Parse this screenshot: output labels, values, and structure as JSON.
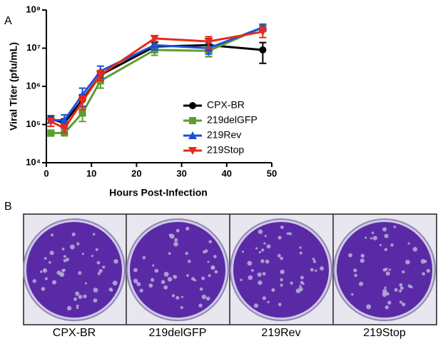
{
  "chart_data": {
    "type": "line",
    "panel_label": "A",
    "x_label": "Hours Post-Infection",
    "y_label": "Viral Titer (pfu/mL)",
    "x": [
      1,
      4,
      8,
      12,
      24,
      36,
      48
    ],
    "log_y": true,
    "xlim": [
      0,
      50
    ],
    "xticks": [
      0,
      10,
      20,
      30,
      40,
      50
    ],
    "ylim": [
      10000,
      100000000
    ],
    "yticks": [
      {
        "value": 10000,
        "label": "10⁴"
      },
      {
        "value": 100000,
        "label": "10⁵"
      },
      {
        "value": 1000000,
        "label": "10⁶"
      },
      {
        "value": 10000000,
        "label": "10⁷"
      },
      {
        "value": 100000000,
        "label": "10⁸"
      }
    ],
    "series": [
      {
        "name": "CPX-BR",
        "color": "#000000",
        "marker": "circle",
        "values": [
          140000,
          110000,
          450000,
          2000000,
          11000000,
          12000000,
          9000000
        ],
        "errors": [
          30000,
          30000,
          150000,
          500000,
          3000000,
          6000000,
          5000000
        ]
      },
      {
        "name": "219delGFP",
        "color": "#5a9e2f",
        "marker": "square",
        "values": [
          60000,
          60000,
          200000,
          1400000,
          9000000,
          8500000,
          35000000
        ],
        "errors": [
          10000,
          8000,
          80000,
          500000,
          2500000,
          2500000,
          8000000
        ]
      },
      {
        "name": "219Rev",
        "color": "#1f4fd6",
        "marker": "triangle-up",
        "values": [
          130000,
          130000,
          600000,
          2500000,
          12000000,
          10000000,
          35000000
        ],
        "errors": [
          40000,
          50000,
          300000,
          900000,
          3000000,
          3000000,
          6000000
        ]
      },
      {
        "name": "219Stop",
        "color": "#e8291c",
        "marker": "triangle-down",
        "values": [
          120000,
          80000,
          400000,
          2000000,
          18000000,
          15000000,
          27000000
        ],
        "errors": [
          30000,
          20000,
          150000,
          600000,
          3000000,
          5000000,
          8000000
        ]
      }
    ]
  },
  "panel_b": {
    "panel_label": "B",
    "plates": [
      "CPX-BR",
      "219delGFP",
      "219Rev",
      "219Stop"
    ]
  }
}
